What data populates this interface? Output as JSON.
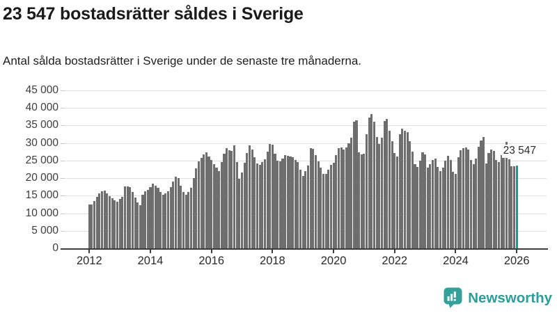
{
  "header": {
    "title": "23 547 bostadsrätter såldes i Sverige",
    "subtitle": "Antal sålda bostadsrätter i Sverige under de senaste tre månaderna."
  },
  "chart_data": {
    "type": "bar",
    "description": "Monthly rolling three-month count of condominiums (bostadsrätter) sold in Sweden",
    "x_start": "2012-01",
    "x_end": "2026-01",
    "values": [
      12400,
      12500,
      13500,
      14600,
      15600,
      16200,
      16400,
      15600,
      14800,
      14200,
      13600,
      13300,
      14000,
      14700,
      17600,
      17700,
      17500,
      16000,
      14400,
      13000,
      12300,
      15200,
      16300,
      16700,
      17500,
      18400,
      17800,
      17200,
      16000,
      15300,
      15700,
      16200,
      17400,
      19000,
      20400,
      20000,
      17800,
      16000,
      15300,
      16000,
      17300,
      20000,
      22700,
      24800,
      25800,
      26800,
      27300,
      26200,
      25200,
      24000,
      22900,
      22100,
      24500,
      27000,
      28500,
      28000,
      27700,
      29300,
      24500,
      19900,
      21600,
      24400,
      27200,
      29300,
      28200,
      26000,
      24200,
      23800,
      24500,
      25400,
      27500,
      29800,
      29500,
      27000,
      25000,
      24800,
      25500,
      26500,
      26400,
      26200,
      26000,
      25200,
      24500,
      22500,
      20700,
      22000,
      23600,
      28600,
      28400,
      26500,
      24800,
      23000,
      21200,
      21300,
      22500,
      23700,
      24400,
      26500,
      28500,
      28800,
      28200,
      28700,
      30000,
      31500,
      36100,
      36500,
      27300,
      26800,
      27000,
      32500,
      37200,
      38300,
      36100,
      31800,
      29800,
      31500,
      36300,
      36800,
      33500,
      30500,
      27200,
      26200,
      32500,
      34100,
      33600,
      33100,
      30500,
      27500,
      23900,
      23200,
      25000,
      27300,
      26800,
      22900,
      24000,
      25200,
      25600,
      23200,
      22000,
      22900,
      25000,
      26300,
      25200,
      21900,
      21200,
      26000,
      28000,
      28500,
      28800,
      28200,
      25200,
      23900,
      25500,
      29000,
      30800,
      31800,
      24200,
      27200,
      28200,
      27700,
      25200,
      24500,
      26500,
      28500,
      30400,
      25400,
      23300,
      23400,
      23547
    ],
    "highlight_index": 168,
    "highlight_value": 23547,
    "annotation": {
      "label": "23 547",
      "value": 23547
    },
    "ylim": [
      0,
      45000
    ],
    "yticks": [
      {
        "value": 0,
        "label": "0"
      },
      {
        "value": 5000,
        "label": "5 000"
      },
      {
        "value": 10000,
        "label": "10 000"
      },
      {
        "value": 15000,
        "label": "15 000"
      },
      {
        "value": 20000,
        "label": "20 000"
      },
      {
        "value": 25000,
        "label": "25 000"
      },
      {
        "value": 30000,
        "label": "30 000"
      },
      {
        "value": 35000,
        "label": "35 000"
      },
      {
        "value": 40000,
        "label": "40 000"
      },
      {
        "value": 45000,
        "label": "45 000"
      }
    ],
    "xticks": [
      {
        "year": 2012,
        "label": "2012"
      },
      {
        "year": 2014,
        "label": "2014"
      },
      {
        "year": 2016,
        "label": "2016"
      },
      {
        "year": 2018,
        "label": "2018"
      },
      {
        "year": 2020,
        "label": "2020"
      },
      {
        "year": 2022,
        "label": "2022"
      },
      {
        "year": 2024,
        "label": "2024"
      },
      {
        "year": 2026,
        "label": "2026"
      }
    ],
    "grid": true,
    "legend": "none",
    "colors": {
      "bar": "#6e6e6e",
      "highlight": "#0f9e99",
      "gridline": "#e1e1e1",
      "axis": "#3d3d3d"
    }
  },
  "footer": {
    "brand": "Newsworthy",
    "brand_color": "#2e9c98",
    "icon": "newsworthy-bar-chart-speech-bubble"
  }
}
